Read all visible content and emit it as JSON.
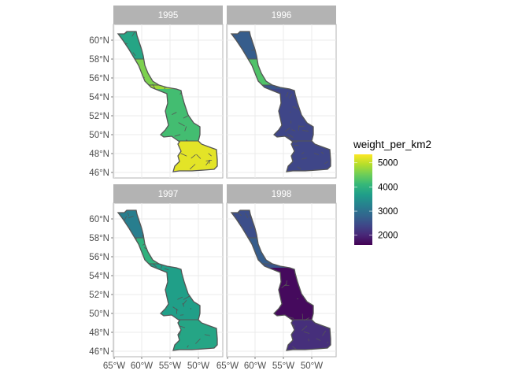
{
  "chart_data": {
    "type": "choropleth-facets",
    "facets": [
      {
        "label": "1995",
        "zones": {
          "north": 3800,
          "upper_mid": 4600,
          "transition": 4800,
          "central": 4200,
          "south": 5200
        }
      },
      {
        "label": "1996",
        "zones": {
          "north": 2700,
          "upper_mid": 4300,
          "transition": 2600,
          "central": 2400,
          "south": 2400
        }
      },
      {
        "label": "1997",
        "zones": {
          "north": 3200,
          "upper_mid": 4000,
          "transition": 3700,
          "central": 3700,
          "south": 3800
        }
      },
      {
        "label": "1998",
        "zones": {
          "north": 2500,
          "upper_mid": 2700,
          "transition": 2600,
          "central": 1700,
          "south": 2100
        }
      }
    ],
    "y_ticks": [
      "46°N",
      "48°N",
      "50°N",
      "52°N",
      "54°N",
      "56°N",
      "58°N",
      "60°N"
    ],
    "x_ticks": [
      "65°W",
      "60°W",
      "55°W",
      "50°W"
    ],
    "legend": {
      "title": "weight_per_km2",
      "breaks": [
        "2000",
        "3000",
        "4000",
        "5000"
      ],
      "break_values": [
        2000,
        3000,
        4000,
        5000
      ],
      "range": [
        1600,
        5350
      ],
      "palette": "viridis",
      "placement": "right"
    },
    "grid": true
  }
}
